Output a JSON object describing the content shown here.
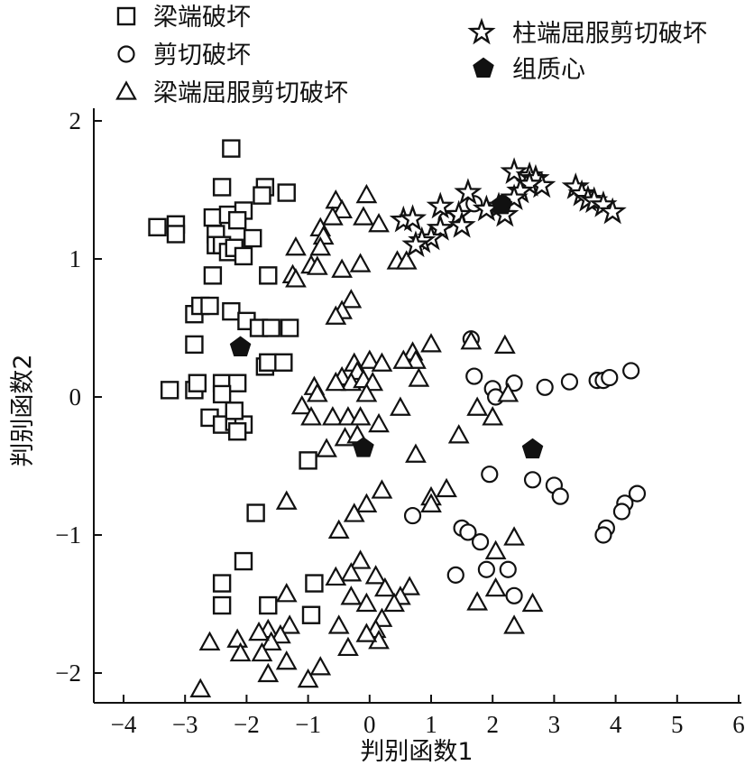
{
  "chart_data": {
    "type": "scatter",
    "title": "",
    "xlabel": "判别函数1",
    "ylabel": "判别函数2",
    "xlim": [
      -4.5,
      6
    ],
    "ylim": [
      -2.2,
      2
    ],
    "x_ticks": [
      -4,
      -3,
      -2,
      -1,
      0,
      1,
      2,
      3,
      4,
      5,
      6
    ],
    "y_ticks": [
      -2,
      -1,
      0,
      1,
      2
    ],
    "x_tick_labels": [
      "−4",
      "−3",
      "−2",
      "−1",
      "0",
      "1",
      "2",
      "3",
      "4",
      "5",
      "6"
    ],
    "y_tick_labels": [
      "−2",
      "−1",
      "0",
      "1",
      "2"
    ],
    "grid": false,
    "legend_position": "top",
    "series": [
      {
        "name": "梁端破坏",
        "marker": "square",
        "color": "#111111",
        "points": [
          [
            -2.25,
            1.8
          ],
          [
            -2.4,
            1.52
          ],
          [
            -1.7,
            1.52
          ],
          [
            -1.35,
            1.48
          ],
          [
            -1.75,
            1.46
          ],
          [
            -3.45,
            1.23
          ],
          [
            -3.15,
            1.25
          ],
          [
            -3.15,
            1.18
          ],
          [
            -2.55,
            1.3
          ],
          [
            -2.3,
            1.32
          ],
          [
            -2.05,
            1.35
          ],
          [
            -2.15,
            1.28
          ],
          [
            -2.5,
            1.18
          ],
          [
            -2.5,
            1.1
          ],
          [
            -2.4,
            1.1
          ],
          [
            -2.3,
            1.05
          ],
          [
            -2.2,
            1.08
          ],
          [
            -1.9,
            1.15
          ],
          [
            -2.05,
            1.02
          ],
          [
            -1.65,
            0.88
          ],
          [
            -2.55,
            0.88
          ],
          [
            -2.85,
            0.6
          ],
          [
            -2.75,
            0.66
          ],
          [
            -2.6,
            0.66
          ],
          [
            -2.25,
            0.62
          ],
          [
            -2.0,
            0.55
          ],
          [
            -1.8,
            0.5
          ],
          [
            -1.6,
            0.5
          ],
          [
            -1.3,
            0.5
          ],
          [
            -2.85,
            0.38
          ],
          [
            -2.85,
            0.05
          ],
          [
            -3.25,
            0.05
          ],
          [
            -2.8,
            0.1
          ],
          [
            -2.4,
            0.1
          ],
          [
            -2.15,
            0.1
          ],
          [
            -2.4,
            0.02
          ],
          [
            -2.6,
            -0.15
          ],
          [
            -2.4,
            -0.2
          ],
          [
            -2.2,
            -0.18
          ],
          [
            -2.05,
            -0.2
          ],
          [
            -2.15,
            -0.25
          ],
          [
            -1.7,
            0.22
          ],
          [
            -1.65,
            0.25
          ],
          [
            -1.4,
            0.25
          ],
          [
            -1.85,
            -0.84
          ],
          [
            -2.05,
            -1.19
          ],
          [
            -1.0,
            -0.46
          ],
          [
            -2.4,
            -1.35
          ],
          [
            -2.4,
            -1.51
          ],
          [
            -1.65,
            -1.51
          ],
          [
            -0.9,
            -1.35
          ],
          [
            -0.95,
            -1.58
          ],
          [
            -2.2,
            -0.1
          ]
        ]
      },
      {
        "name": "剪切破坏",
        "marker": "circle",
        "color": "#111111",
        "points": [
          [
            1.7,
            1.4
          ],
          [
            1.25,
            1.28
          ],
          [
            1.65,
            0.42
          ],
          [
            1.7,
            0.15
          ],
          [
            2.0,
            0.06
          ],
          [
            2.05,
            0.0
          ],
          [
            2.35,
            0.1
          ],
          [
            2.85,
            0.07
          ],
          [
            3.25,
            0.11
          ],
          [
            3.7,
            0.12
          ],
          [
            3.8,
            0.12
          ],
          [
            3.9,
            0.14
          ],
          [
            4.25,
            0.19
          ],
          [
            1.95,
            -0.56
          ],
          [
            2.65,
            -0.6
          ],
          [
            3.0,
            -0.64
          ],
          [
            3.1,
            -0.72
          ],
          [
            4.35,
            -0.7
          ],
          [
            4.15,
            -0.77
          ],
          [
            4.1,
            -0.83
          ],
          [
            3.85,
            -0.95
          ],
          [
            3.8,
            -1.0
          ],
          [
            0.7,
            -0.86
          ],
          [
            1.5,
            -0.95
          ],
          [
            1.6,
            -0.98
          ],
          [
            1.8,
            -1.05
          ],
          [
            1.9,
            -1.25
          ],
          [
            2.25,
            -1.25
          ],
          [
            2.35,
            -1.44
          ],
          [
            1.4,
            -1.29
          ]
        ]
      },
      {
        "name": "梁端屈服剪切破坏",
        "marker": "triangle",
        "color": "#111111",
        "points": [
          [
            -0.55,
            1.42
          ],
          [
            -0.45,
            1.35
          ],
          [
            -0.05,
            1.46
          ],
          [
            -0.6,
            1.3
          ],
          [
            -0.1,
            1.3
          ],
          [
            0.15,
            1.25
          ],
          [
            -0.8,
            1.22
          ],
          [
            -0.75,
            1.16
          ],
          [
            -1.2,
            1.08
          ],
          [
            -0.8,
            1.08
          ],
          [
            -0.95,
            0.95
          ],
          [
            -0.85,
            0.94
          ],
          [
            -1.25,
            0.88
          ],
          [
            -1.2,
            0.85
          ],
          [
            -0.45,
            0.92
          ],
          [
            -0.15,
            0.96
          ],
          [
            0.45,
            0.98
          ],
          [
            0.6,
            0.98
          ],
          [
            -0.3,
            0.7
          ],
          [
            -0.45,
            0.62
          ],
          [
            -0.55,
            0.58
          ],
          [
            1.0,
            0.38
          ],
          [
            0.7,
            0.32
          ],
          [
            0.75,
            0.26
          ],
          [
            0.55,
            0.26
          ],
          [
            0.0,
            0.26
          ],
          [
            0.2,
            0.24
          ],
          [
            -0.25,
            0.24
          ],
          [
            -0.2,
            0.18
          ],
          [
            -0.45,
            0.14
          ],
          [
            -0.3,
            0.1
          ],
          [
            -0.55,
            0.1
          ],
          [
            -0.9,
            0.07
          ],
          [
            -0.85,
            0.02
          ],
          [
            -0.1,
            0.12
          ],
          [
            0.05,
            0.1
          ],
          [
            -0.05,
            0.02
          ],
          [
            0.8,
            0.13
          ],
          [
            -1.1,
            -0.07
          ],
          [
            -0.95,
            -0.15
          ],
          [
            -0.6,
            -0.15
          ],
          [
            -0.35,
            -0.15
          ],
          [
            -0.15,
            -0.15
          ],
          [
            0.15,
            -0.2
          ],
          [
            0.5,
            -0.08
          ],
          [
            -0.7,
            -0.38
          ],
          [
            -0.4,
            -0.3
          ],
          [
            -0.2,
            -0.28
          ],
          [
            1.45,
            -0.28
          ],
          [
            2.2,
            0.37
          ],
          [
            1.65,
            0.4
          ],
          [
            2.25,
            0.02
          ],
          [
            1.75,
            -0.08
          ],
          [
            2.0,
            -0.15
          ],
          [
            -1.35,
            -0.76
          ],
          [
            -0.05,
            -0.78
          ],
          [
            0.2,
            -0.68
          ],
          [
            -0.25,
            -0.85
          ],
          [
            -0.5,
            -0.97
          ],
          [
            1.0,
            -0.73
          ],
          [
            1.25,
            -0.67
          ],
          [
            1.0,
            -0.78
          ],
          [
            0.75,
            -0.42
          ],
          [
            2.35,
            -1.02
          ],
          [
            2.05,
            -1.12
          ],
          [
            2.05,
            -1.39
          ],
          [
            2.65,
            -1.5
          ],
          [
            1.75,
            -1.49
          ],
          [
            2.35,
            -1.66
          ],
          [
            -0.15,
            -1.19
          ],
          [
            -0.3,
            -1.28
          ],
          [
            -0.55,
            -1.31
          ],
          [
            0.1,
            -1.3
          ],
          [
            -0.3,
            -1.45
          ],
          [
            -0.05,
            -1.5
          ],
          [
            0.25,
            -1.39
          ],
          [
            0.65,
            -1.38
          ],
          [
            0.5,
            -1.45
          ],
          [
            0.4,
            -1.5
          ],
          [
            0.2,
            -1.61
          ],
          [
            0.1,
            -1.69
          ],
          [
            0.15,
            -1.77
          ],
          [
            -0.5,
            -1.66
          ],
          [
            -0.05,
            -1.72
          ],
          [
            -0.35,
            -1.82
          ],
          [
            -1.35,
            -1.43
          ],
          [
            -1.3,
            -1.66
          ],
          [
            -1.65,
            -1.69
          ],
          [
            -1.45,
            -1.73
          ],
          [
            -1.6,
            -1.78
          ],
          [
            -1.8,
            -1.71
          ],
          [
            -2.15,
            -1.76
          ],
          [
            -2.6,
            -1.78
          ],
          [
            -1.75,
            -1.86
          ],
          [
            -1.35,
            -1.92
          ],
          [
            -1.65,
            -2.01
          ],
          [
            -2.1,
            -1.86
          ],
          [
            -2.75,
            -2.12
          ],
          [
            -1.0,
            -2.05
          ],
          [
            -0.8,
            -1.96
          ]
        ]
      },
      {
        "name": "柱端屈服剪切破坏",
        "marker": "star",
        "color": "#111111",
        "points": [
          [
            2.35,
            1.63
          ],
          [
            2.6,
            1.6
          ],
          [
            2.7,
            1.58
          ],
          [
            2.8,
            1.53
          ],
          [
            2.6,
            1.54
          ],
          [
            2.45,
            1.49
          ],
          [
            2.35,
            1.44
          ],
          [
            2.1,
            1.38
          ],
          [
            2.2,
            1.32
          ],
          [
            1.9,
            1.36
          ],
          [
            1.6,
            1.48
          ],
          [
            1.45,
            1.32
          ],
          [
            1.5,
            1.24
          ],
          [
            1.15,
            1.22
          ],
          [
            1.0,
            1.15
          ],
          [
            0.85,
            1.13
          ],
          [
            0.75,
            1.1
          ],
          [
            0.55,
            1.28
          ],
          [
            0.7,
            1.29
          ],
          [
            1.15,
            1.38
          ],
          [
            3.35,
            1.52
          ],
          [
            3.45,
            1.47
          ],
          [
            3.55,
            1.43
          ],
          [
            3.65,
            1.42
          ],
          [
            3.8,
            1.39
          ],
          [
            3.95,
            1.34
          ]
        ]
      },
      {
        "name": "组质心",
        "marker": "pentagon",
        "color": "#111111",
        "points": [
          [
            2.15,
            1.39
          ],
          [
            -2.1,
            0.36
          ],
          [
            -0.1,
            -0.37
          ],
          [
            2.65,
            -0.38
          ]
        ]
      }
    ]
  }
}
